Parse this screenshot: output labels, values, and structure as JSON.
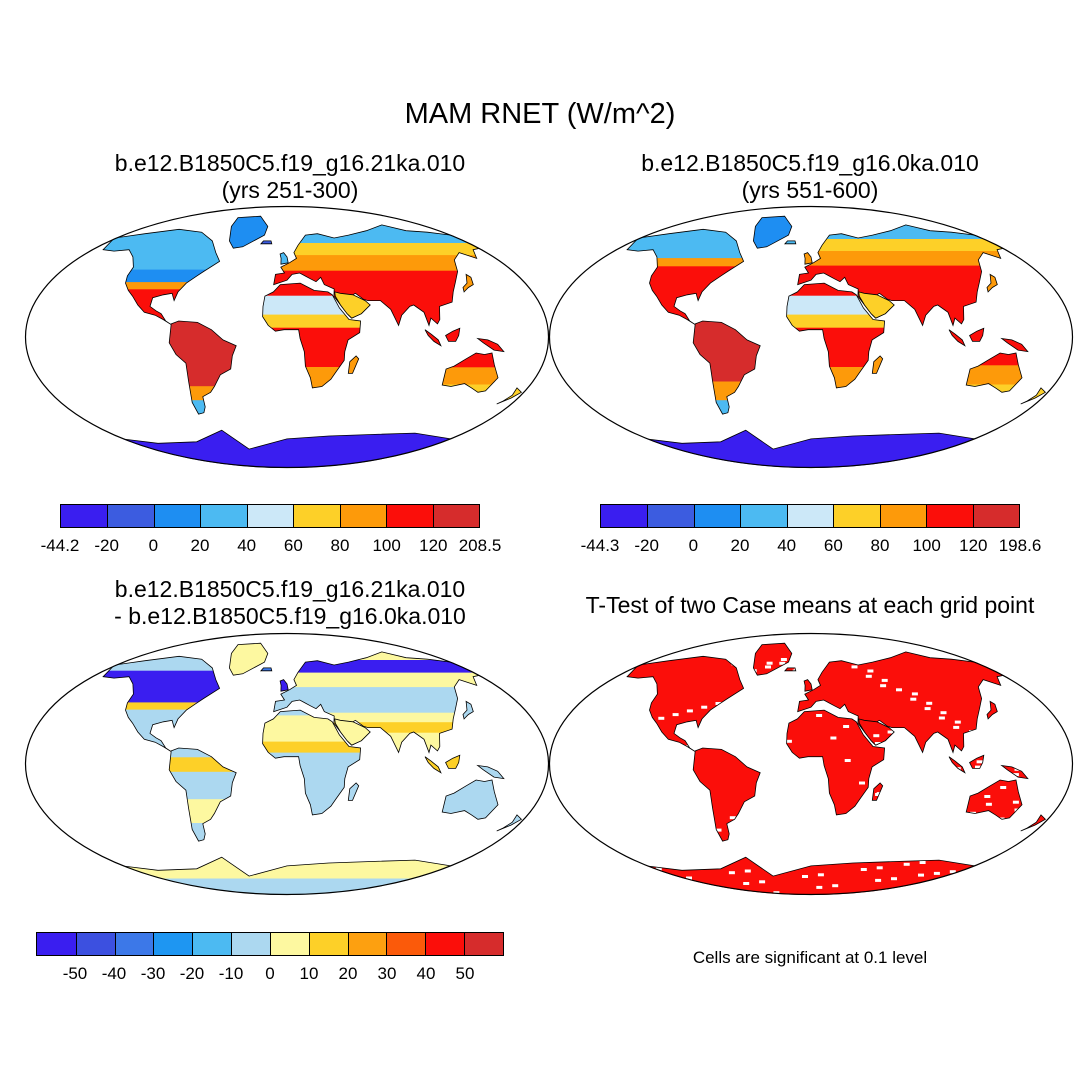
{
  "title": "MAM RNET (W/m^2)",
  "panels": [
    {
      "id": "p1",
      "title_line1": "b.e12.B1850C5.f19_g16.21ka.010",
      "title_line2": "(yrs 251-300)",
      "colorbar": {
        "colors": [
          "#3a1ef0",
          "#3c5ce0",
          "#1e8ef2",
          "#4cbaf2",
          "#cce8f8",
          "#fdd028",
          "#fd9a0a",
          "#fb0e0a",
          "#d62c2c"
        ],
        "labels": [
          "-44.2",
          "-20",
          "0",
          "20",
          "40",
          "60",
          "80",
          "100",
          "120",
          "208.5"
        ]
      }
    },
    {
      "id": "p2",
      "title_line1": "b.e12.B1850C5.f19_g16.0ka.010",
      "title_line2": "(yrs 551-600)",
      "colorbar": {
        "colors": [
          "#3a1ef0",
          "#3c5ce0",
          "#1e8ef2",
          "#4cbaf2",
          "#cce8f8",
          "#fdd028",
          "#fd9a0a",
          "#fb0e0a",
          "#d62c2c"
        ],
        "labels": [
          "-44.3",
          "-20",
          "0",
          "20",
          "40",
          "60",
          "80",
          "100",
          "120",
          "198.6"
        ]
      }
    },
    {
      "id": "p3",
      "title_line1": "b.e12.B1850C5.f19_g16.21ka.010",
      "title_line2": "- b.e12.B1850C5.f19_g16.0ka.010",
      "colorbar": {
        "colors": [
          "#3a1ef0",
          "#3c50e0",
          "#3c78e8",
          "#1e96f2",
          "#4cbaf2",
          "#acd8f0",
          "#fdf8a0",
          "#fdd028",
          "#fda010",
          "#fb5a0a",
          "#fb0e0a",
          "#d62c2c"
        ],
        "labels": [
          "-50",
          "-40",
          "-30",
          "-20",
          "-10",
          "0",
          "10",
          "20",
          "30",
          "40",
          "50"
        ]
      }
    },
    {
      "id": "p4",
      "title_line1": "T-Test of two Case means at each grid point",
      "note": "Cells are significant at 0.1 level"
    }
  ]
}
